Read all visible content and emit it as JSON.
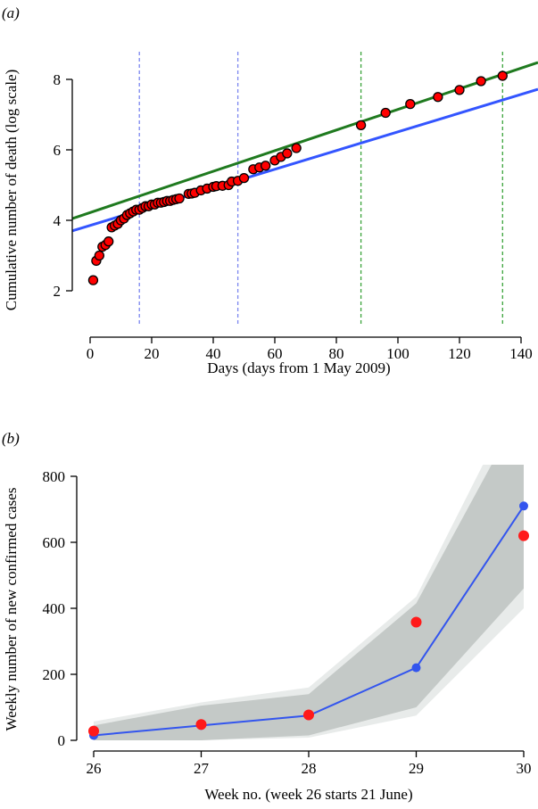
{
  "chart_data": [
    {
      "type": "scatter",
      "panel_label": "(a)",
      "xlabel": "Days (days from 1 May 2009)",
      "ylabel": "Cumulative number of death (log scale)",
      "xlim": [
        0,
        140
      ],
      "ylim": [
        2,
        8
      ],
      "log_scale_y": true,
      "grid": false,
      "xticks": [
        "0",
        "20",
        "40",
        "60",
        "80",
        "100",
        "120",
        "140"
      ],
      "yticks": [
        "2",
        "4",
        "6",
        "8"
      ],
      "points": {
        "color": "#ff0000",
        "x": [
          1,
          2,
          3,
          4,
          5,
          6,
          7,
          8,
          9,
          10,
          11,
          12,
          13,
          14,
          15,
          16,
          17,
          18,
          19,
          20,
          21,
          22,
          23,
          24,
          25,
          26,
          27,
          28,
          29,
          32,
          33,
          34,
          36,
          38,
          40,
          41,
          43,
          45,
          46,
          48,
          50,
          53,
          55,
          57,
          60,
          62,
          64,
          67,
          88,
          96,
          104,
          113,
          120,
          127,
          134
        ],
        "y": [
          2.3,
          2.85,
          3.0,
          3.25,
          3.3,
          3.4,
          3.8,
          3.85,
          3.9,
          4.0,
          4.05,
          4.15,
          4.2,
          4.25,
          4.3,
          4.3,
          4.35,
          4.4,
          4.4,
          4.45,
          4.45,
          4.5,
          4.5,
          4.52,
          4.55,
          4.55,
          4.58,
          4.6,
          4.62,
          4.75,
          4.76,
          4.78,
          4.85,
          4.9,
          4.95,
          4.97,
          4.98,
          5.0,
          5.1,
          5.12,
          5.2,
          5.45,
          5.5,
          5.55,
          5.7,
          5.8,
          5.9,
          6.05,
          6.7,
          7.05,
          7.3,
          7.5,
          7.7,
          7.95,
          8.1
        ]
      },
      "fit_lines": [
        {
          "color": "#1f7a1f",
          "x": [
            -5.8,
            145.5
          ],
          "y": [
            4.05,
            8.48
          ]
        },
        {
          "color": "#3355ff",
          "x": [
            -5.8,
            145.5
          ],
          "y": [
            3.7,
            7.72
          ]
        }
      ],
      "vlines": [
        {
          "x": 16,
          "color": "#7b86f0"
        },
        {
          "x": 48,
          "color": "#7b86f0"
        },
        {
          "x": 88,
          "color": "#3aa33a"
        },
        {
          "x": 134,
          "color": "#3aa33a"
        }
      ]
    },
    {
      "type": "line",
      "panel_label": "(b)",
      "xlabel": "Week no. (week 26 starts 21 June)",
      "ylabel": "Weekly number of new confirmed cases",
      "xlim": [
        26,
        30
      ],
      "ylim": [
        0,
        800
      ],
      "grid": false,
      "xticks": [
        "26",
        "27",
        "28",
        "29",
        "30"
      ],
      "yticks": [
        "0",
        "200",
        "400",
        "600",
        "800"
      ],
      "x": [
        26,
        27,
        28,
        29,
        30
      ],
      "predicted": {
        "color": "#3355ee",
        "values": [
          15,
          45,
          75,
          220,
          710
        ]
      },
      "observed": {
        "color": "#ff1a1a",
        "values": [
          28,
          48,
          77,
          358,
          620
        ]
      },
      "band_outer": {
        "color": "#e8ebea",
        "lower": [
          0,
          0,
          8,
          75,
          400
        ],
        "upper": [
          57,
          115,
          160,
          435,
          1080
        ]
      },
      "band_inner": {
        "color": "#c4c9c7",
        "lower": [
          0,
          0,
          15,
          100,
          460
        ],
        "upper": [
          45,
          105,
          140,
          415,
          1015
        ]
      }
    }
  ]
}
